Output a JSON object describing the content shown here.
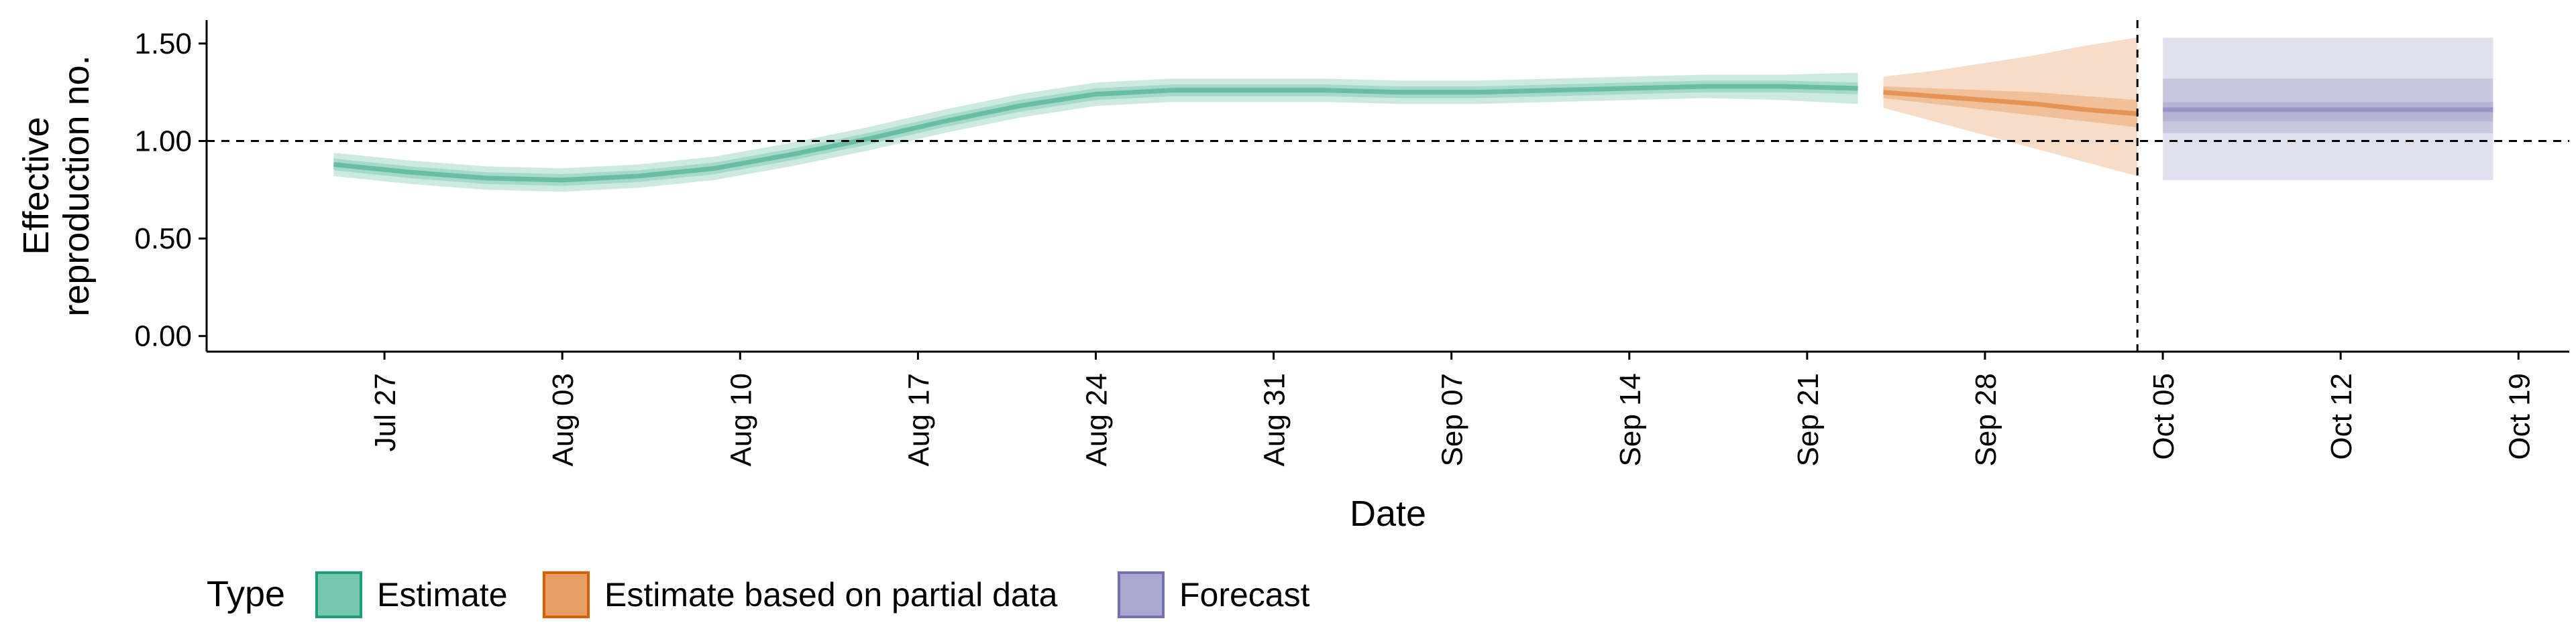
{
  "chart_data": {
    "type": "line",
    "xlabel": "Date",
    "ylabel": [
      "Effective",
      "reproduction no."
    ],
    "ylim": [
      -0.08,
      1.62
    ],
    "xlim": [
      "2021-07-20",
      "2021-10-21"
    ],
    "y_ticks": [
      0.0,
      0.5,
      1.0,
      1.5
    ],
    "y_tick_labels": [
      "0.00",
      "0.50",
      "1.00",
      "1.50"
    ],
    "x_ticks": [
      "2021-07-27",
      "2021-08-03",
      "2021-08-10",
      "2021-08-17",
      "2021-08-24",
      "2021-08-31",
      "2021-09-07",
      "2021-09-14",
      "2021-09-21",
      "2021-09-28",
      "2021-10-05",
      "2021-10-12",
      "2021-10-19"
    ],
    "x_tick_labels": [
      "Jul 27",
      "Aug 03",
      "Aug 10",
      "Aug 17",
      "Aug 24",
      "Aug 31",
      "Sep 07",
      "Sep 14",
      "Sep 21",
      "Sep 28",
      "Oct 05",
      "Oct 12",
      "Oct 19"
    ],
    "reference_line_y": 1.0,
    "reference_line_x": "2021-10-04",
    "grid": false,
    "legend": {
      "title": "Type",
      "position": "bottom-left",
      "items": [
        "Estimate",
        "Estimate based on partial data",
        "Forecast"
      ]
    },
    "series": [
      {
        "name": "Estimate",
        "color": "#1B9E77",
        "x": [
          "2021-07-25",
          "2021-07-28",
          "2021-07-31",
          "2021-08-03",
          "2021-08-06",
          "2021-08-09",
          "2021-08-12",
          "2021-08-15",
          "2021-08-18",
          "2021-08-21",
          "2021-08-24",
          "2021-08-27",
          "2021-08-30",
          "2021-09-02",
          "2021-09-05",
          "2021-09-08",
          "2021-09-11",
          "2021-09-14",
          "2021-09-17",
          "2021-09-20",
          "2021-09-23"
        ],
        "median": [
          0.88,
          0.84,
          0.81,
          0.8,
          0.82,
          0.86,
          0.93,
          1.01,
          1.1,
          1.18,
          1.24,
          1.26,
          1.26,
          1.26,
          1.25,
          1.25,
          1.26,
          1.27,
          1.28,
          1.28,
          1.27
        ],
        "inner_lower": [
          0.85,
          0.81,
          0.78,
          0.77,
          0.79,
          0.83,
          0.9,
          0.98,
          1.07,
          1.15,
          1.21,
          1.23,
          1.23,
          1.23,
          1.22,
          1.22,
          1.23,
          1.24,
          1.25,
          1.25,
          1.24
        ],
        "inner_upper": [
          0.91,
          0.87,
          0.84,
          0.83,
          0.85,
          0.89,
          0.96,
          1.04,
          1.13,
          1.21,
          1.27,
          1.29,
          1.29,
          1.29,
          1.28,
          1.28,
          1.29,
          1.3,
          1.31,
          1.31,
          1.3
        ],
        "outer_lower": [
          0.82,
          0.78,
          0.75,
          0.74,
          0.76,
          0.8,
          0.87,
          0.95,
          1.04,
          1.12,
          1.18,
          1.2,
          1.2,
          1.2,
          1.19,
          1.19,
          1.2,
          1.21,
          1.22,
          1.21,
          1.19
        ],
        "outer_upper": [
          0.94,
          0.9,
          0.87,
          0.86,
          0.88,
          0.92,
          0.99,
          1.07,
          1.16,
          1.24,
          1.3,
          1.32,
          1.32,
          1.32,
          1.31,
          1.31,
          1.32,
          1.33,
          1.34,
          1.34,
          1.35
        ]
      },
      {
        "name": "Estimate based on partial data",
        "color": "#D95F02",
        "x": [
          "2021-09-24",
          "2021-09-26",
          "2021-09-28",
          "2021-09-30",
          "2021-10-02",
          "2021-10-04"
        ],
        "median": [
          1.25,
          1.23,
          1.21,
          1.19,
          1.16,
          1.14
        ],
        "inner_lower": [
          1.22,
          1.19,
          1.16,
          1.13,
          1.1,
          1.07
        ],
        "inner_upper": [
          1.28,
          1.27,
          1.26,
          1.25,
          1.23,
          1.21
        ],
        "outer_lower": [
          1.17,
          1.1,
          1.03,
          0.96,
          0.89,
          0.82
        ],
        "outer_upper": [
          1.33,
          1.36,
          1.4,
          1.44,
          1.49,
          1.53
        ]
      },
      {
        "name": "Forecast",
        "color": "#7570B3",
        "x": [
          "2021-10-05",
          "2021-10-18"
        ],
        "median": [
          1.16,
          1.16
        ],
        "inner_lower": [
          1.1,
          1.1
        ],
        "inner_upper": [
          1.2,
          1.2
        ],
        "mid_lower": [
          1.04,
          1.04
        ],
        "mid_upper": [
          1.32,
          1.32
        ],
        "outer_lower": [
          0.8,
          0.8
        ],
        "outer_upper": [
          1.53,
          1.53
        ]
      }
    ]
  }
}
